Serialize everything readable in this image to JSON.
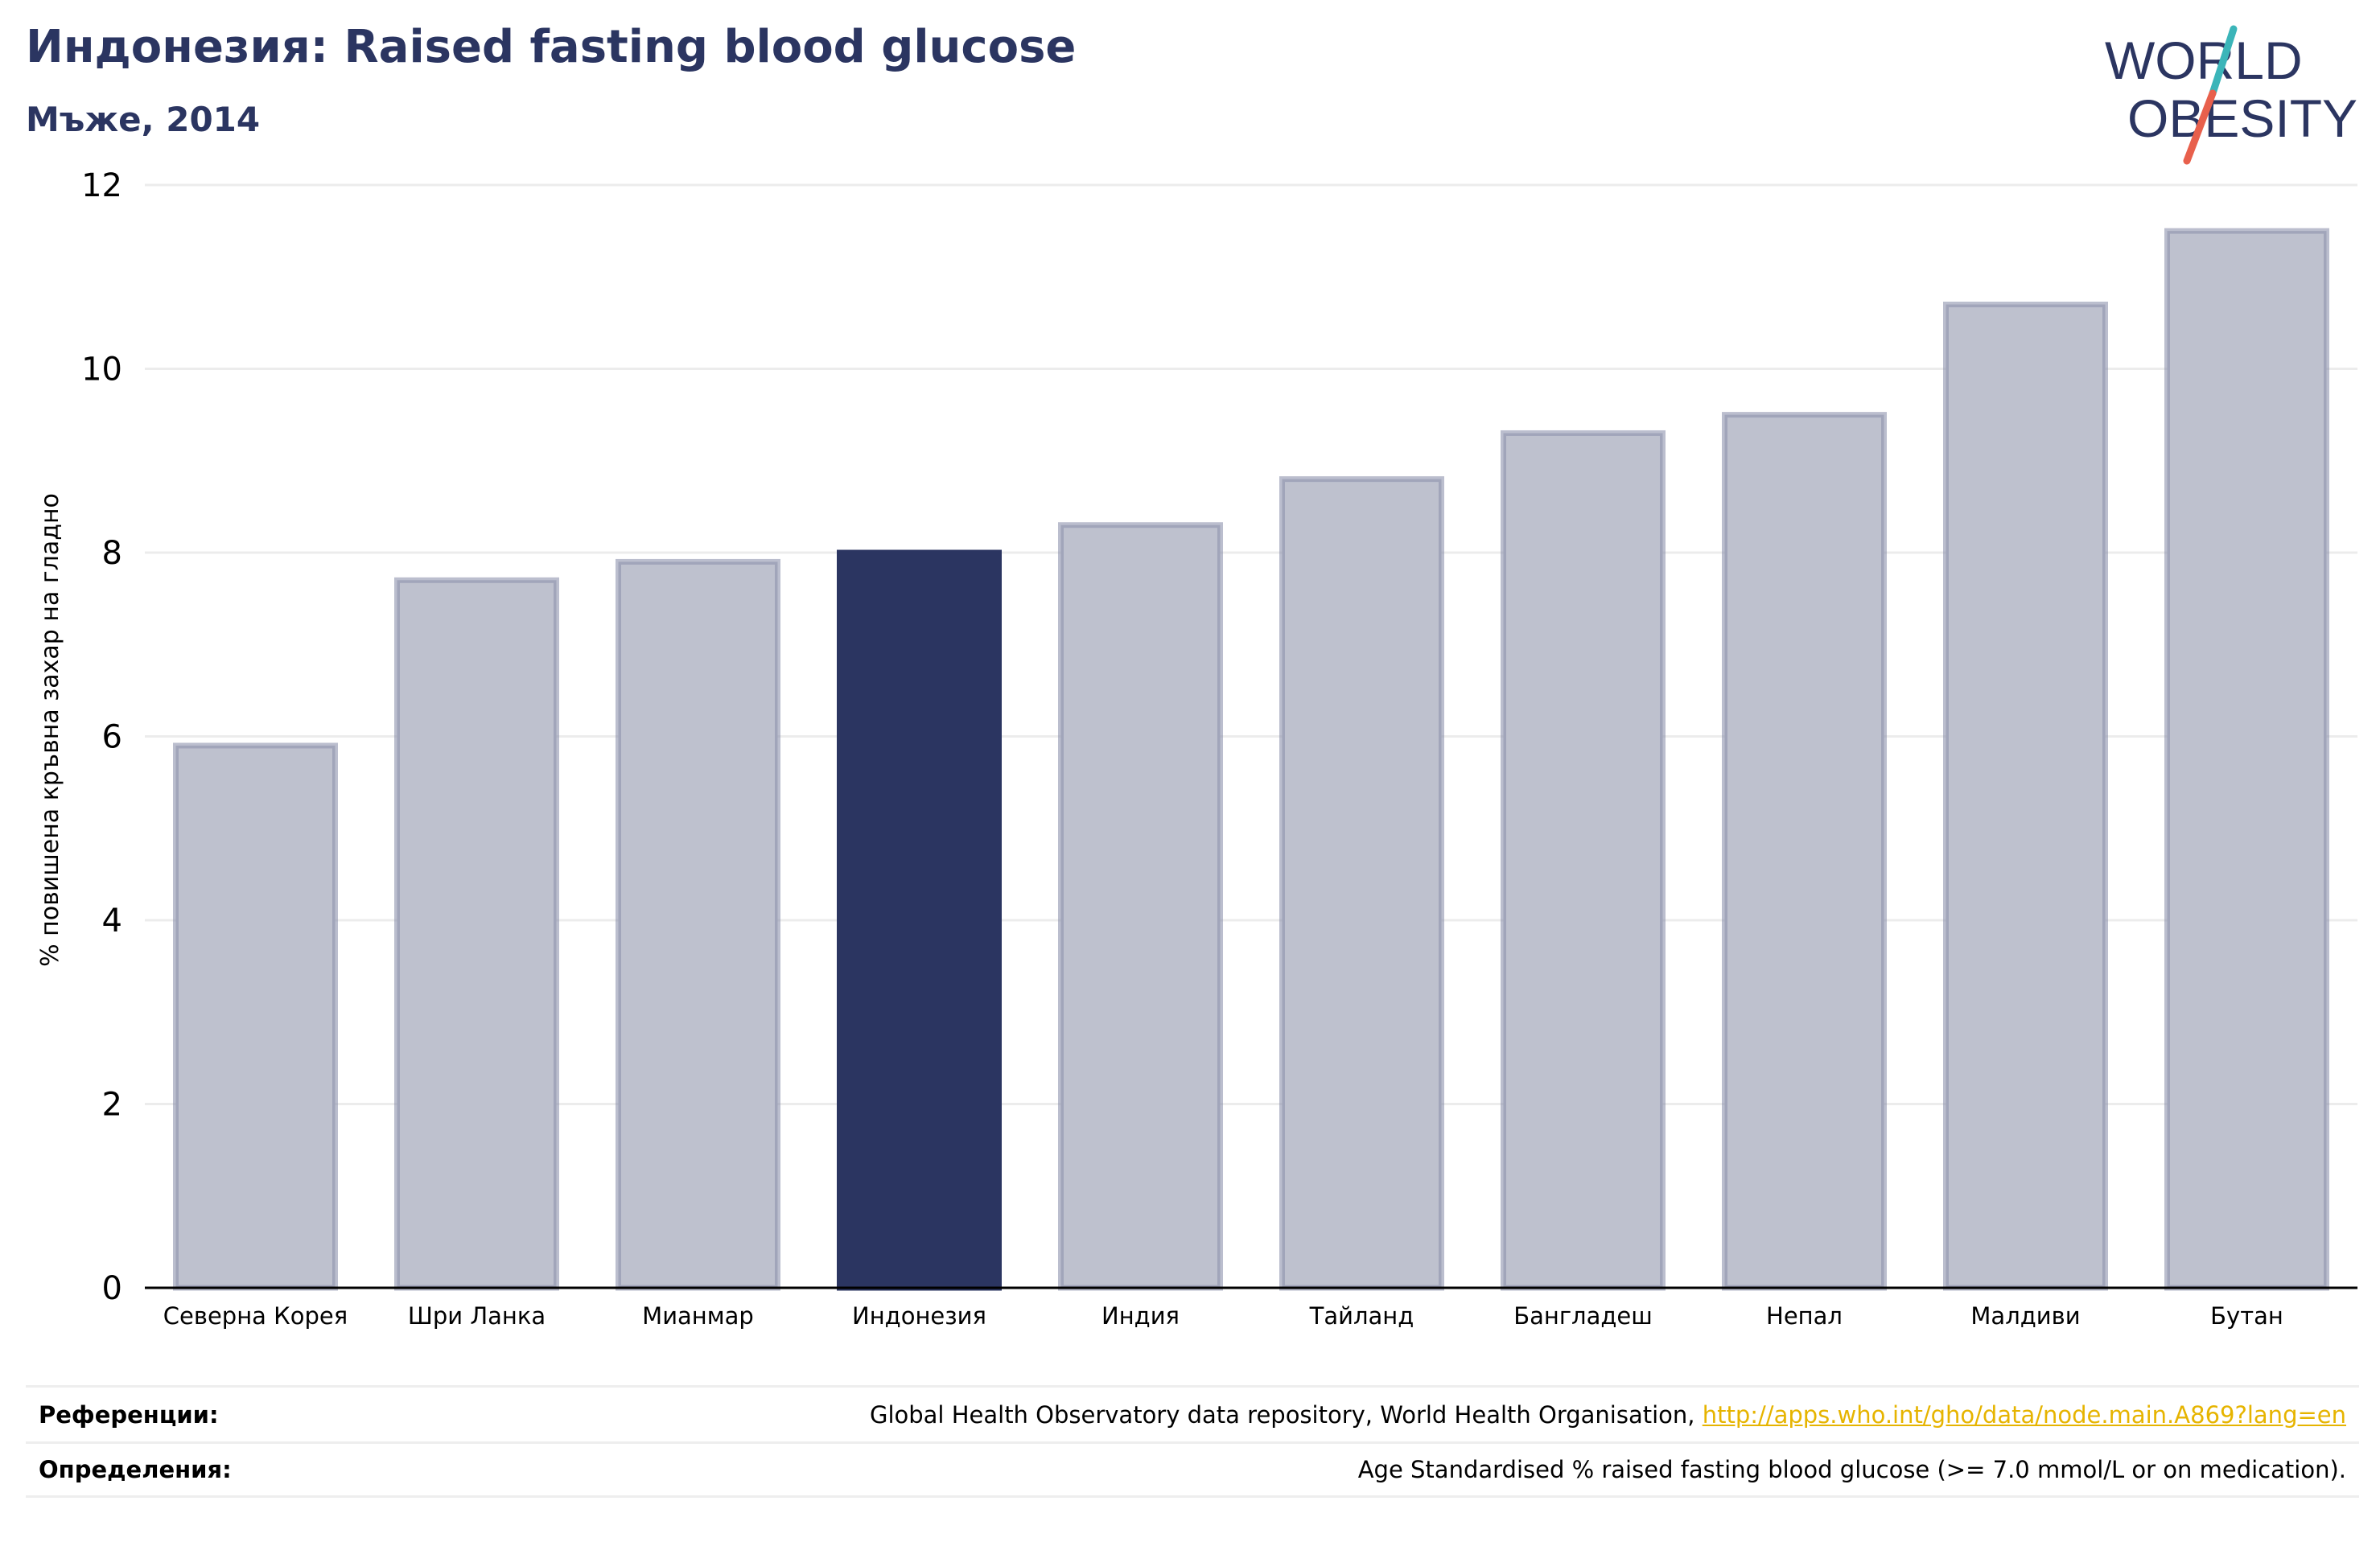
{
  "header": {
    "title": "Индонезия: Raised fasting blood glucose",
    "subtitle": "Мъже, 2014"
  },
  "logo": {
    "line1": "WORLD",
    "line2": "OBESITY",
    "colors": {
      "text": "#2b3561",
      "slash_top": "#3bb5b9",
      "slash_bottom": "#e8604c"
    }
  },
  "chart_data": {
    "type": "bar",
    "ylabel": "% повишена кръвна захар на гладно",
    "ylim": [
      0,
      12
    ],
    "yticks": [
      0,
      2,
      4,
      6,
      8,
      10,
      12
    ],
    "categories": [
      "Северна Корея",
      "Шри Ланка",
      "Мианмар",
      "Индонезия",
      "Индия",
      "Тайланд",
      "Бангладеш",
      "Непал",
      "Малдиви",
      "Бутан"
    ],
    "values": [
      5.9,
      7.7,
      7.9,
      8.0,
      8.3,
      8.8,
      9.3,
      9.5,
      10.7,
      11.5
    ],
    "highlight": "Индонезия",
    "grid": true,
    "colors": {
      "bar_fill": "#bec1ce",
      "bar_stroke": "#8d93ad",
      "highlight_fill": "#2b3561",
      "grid": "#ececec",
      "axis": "#000000"
    }
  },
  "footer": {
    "references_label": "Референции:",
    "references_text": "Global Health Observatory data repository, World Health Organisation, ",
    "references_link": "http://apps.who.int/gho/data/node.main.A869?lang=en",
    "definitions_label": "Определения:",
    "definitions_text": "Age Standardised % raised fasting blood glucose (>= 7.0 mmol/L or on medication)."
  }
}
